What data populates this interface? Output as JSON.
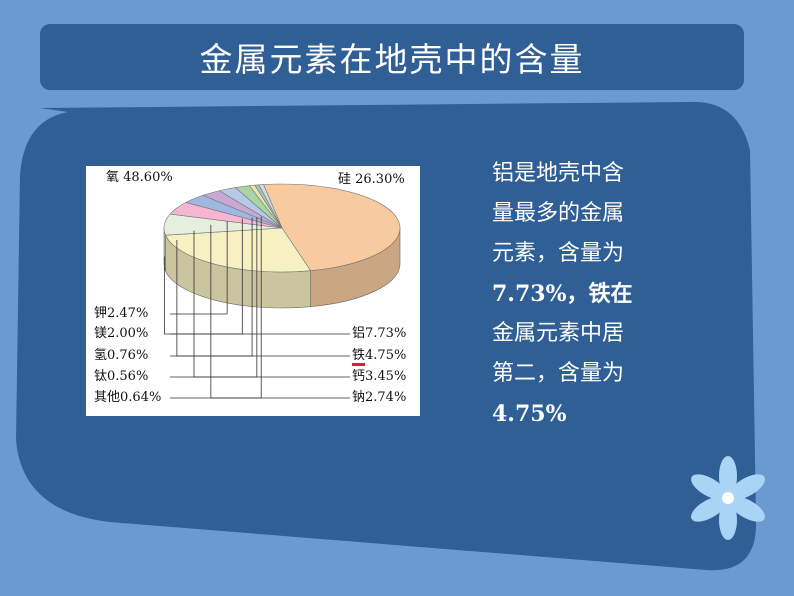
{
  "slide": {
    "title": "金属元素在地壳中的含量",
    "body_lines": [
      "铝是地壳中含",
      "量最多的金属",
      "元素，含量为",
      "7.73%，铁在",
      "金属元素中居",
      "第二，含量为",
      "4.75%"
    ]
  },
  "colors": {
    "background": "#6b9ad0",
    "title_bar": "#2f5f95",
    "panel": "#2f5f95",
    "highlight": "#e0201b"
  },
  "chart_data": {
    "type": "pie",
    "title": "",
    "slices": [
      {
        "label": "氧",
        "value": 48.6,
        "text": "48.60%",
        "color": "#f8caa0"
      },
      {
        "label": "硅",
        "value": 26.3,
        "text": "26.30%",
        "color": "#f7f0c2"
      },
      {
        "label": "铝",
        "value": 7.73,
        "text": "7.73%",
        "color": "#e6eedd"
      },
      {
        "label": "铁",
        "value": 4.75,
        "text": "4.75%",
        "color": "#f6b6d2",
        "highlighted": true
      },
      {
        "label": "钙",
        "value": 3.45,
        "text": "3.45%",
        "color": "#9fb8e2"
      },
      {
        "label": "钠",
        "value": 2.74,
        "text": "2.74%",
        "color": "#c9a8d6"
      },
      {
        "label": "钾",
        "value": 2.47,
        "text": "2.47%",
        "color": "#b8c8e8"
      },
      {
        "label": "镁",
        "value": 2.0,
        "text": "2.00%",
        "color": "#a9d4a6"
      },
      {
        "label": "氢",
        "value": 0.76,
        "text": "0.76%",
        "color": "#e8e6a0"
      },
      {
        "label": "钛",
        "value": 0.56,
        "text": "0.56%",
        "color": "#98c8d0"
      },
      {
        "label": "其他",
        "value": 0.64,
        "text": "0.64%",
        "color": "#d8d8d8"
      }
    ]
  }
}
